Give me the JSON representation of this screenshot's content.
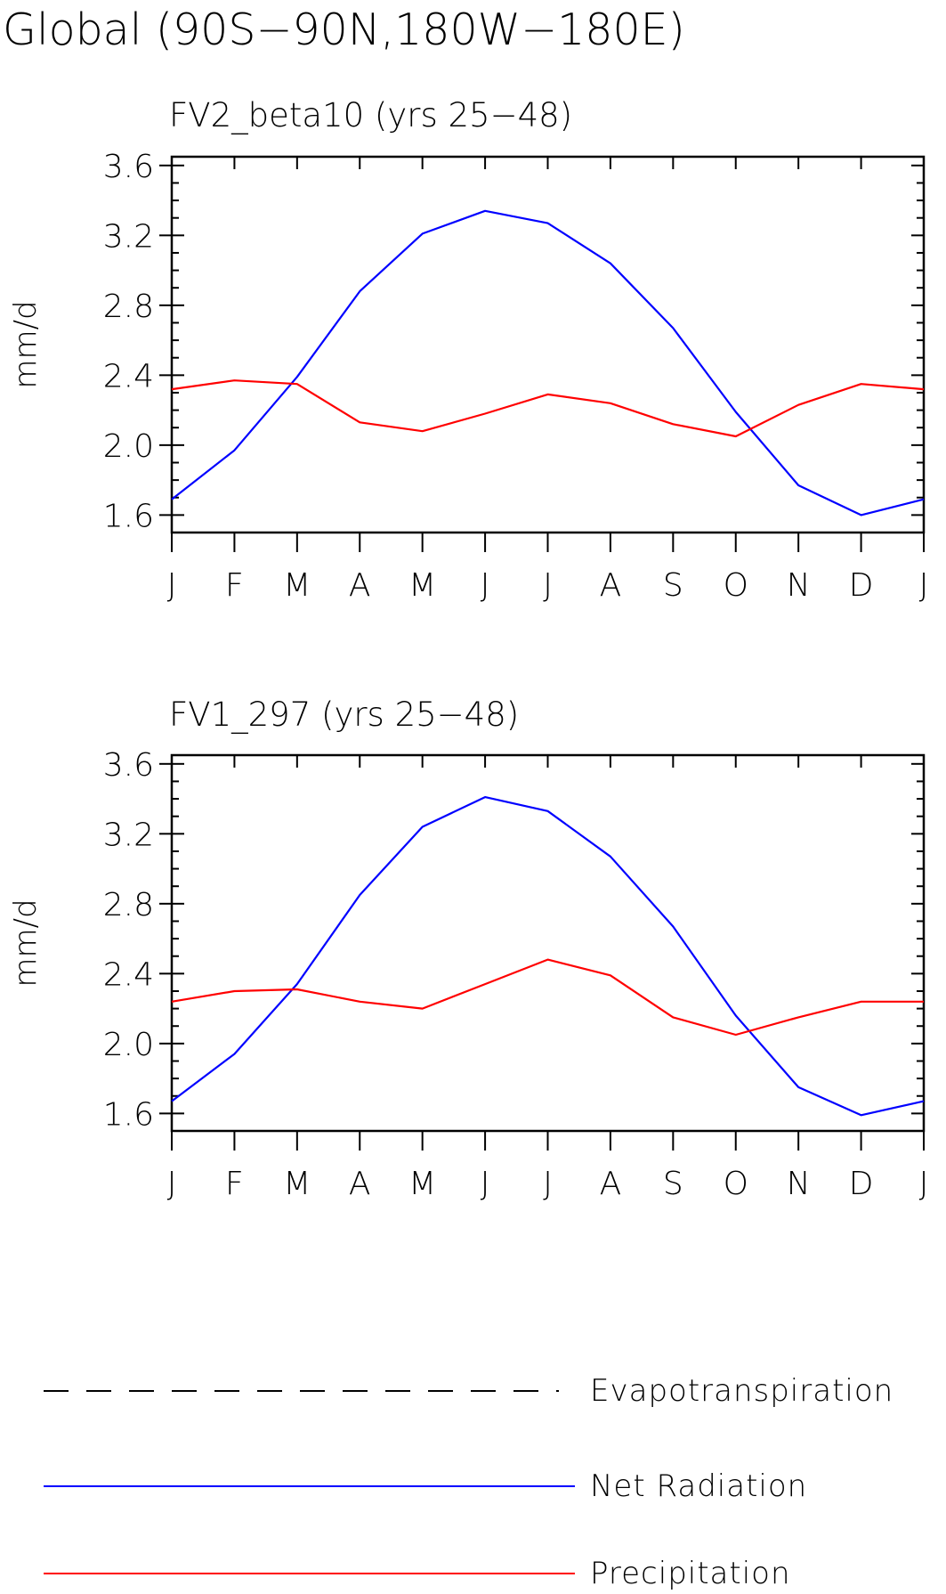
{
  "title": "Global (90S−90N,180W−180E)",
  "legend": [
    {
      "label": "Evapotranspiration",
      "color": "#000000",
      "dash": true
    },
    {
      "label": "Net Radiation",
      "color": "#0000ff",
      "dash": false
    },
    {
      "label": "Precipitation",
      "color": "#ff0000",
      "dash": false
    }
  ],
  "chart_data": [
    {
      "type": "line",
      "title": "FV2_beta10 (yrs 25−48)",
      "ylabel": "mm/d",
      "xlabel": "",
      "categories": [
        "J",
        "F",
        "M",
        "A",
        "M",
        "J",
        "J",
        "A",
        "S",
        "O",
        "N",
        "D",
        "J"
      ],
      "ylim": [
        1.5,
        3.65
      ],
      "yticks": [
        "1.6",
        "2.0",
        "2.4",
        "2.8",
        "3.2",
        "3.6"
      ],
      "grid": false,
      "series": [
        {
          "name": "Net Radiation",
          "color": "#0000ff",
          "values": [
            1.69,
            1.97,
            2.39,
            2.88,
            3.21,
            3.34,
            3.27,
            3.04,
            2.67,
            2.19,
            1.77,
            1.6,
            1.69
          ]
        },
        {
          "name": "Precipitation",
          "color": "#ff0000",
          "values": [
            2.32,
            2.37,
            2.35,
            2.13,
            2.08,
            2.18,
            2.29,
            2.24,
            2.12,
            2.05,
            2.23,
            2.35,
            2.32
          ]
        }
      ]
    },
    {
      "type": "line",
      "title": "FV1_297 (yrs 25−48)",
      "ylabel": "mm/d",
      "xlabel": "",
      "categories": [
        "J",
        "F",
        "M",
        "A",
        "M",
        "J",
        "J",
        "A",
        "S",
        "O",
        "N",
        "D",
        "J"
      ],
      "ylim": [
        1.5,
        3.65
      ],
      "yticks": [
        "1.6",
        "2.0",
        "2.4",
        "2.8",
        "3.2",
        "3.6"
      ],
      "grid": false,
      "series": [
        {
          "name": "Net Radiation",
          "color": "#0000ff",
          "values": [
            1.67,
            1.94,
            2.34,
            2.85,
            3.24,
            3.41,
            3.33,
            3.07,
            2.67,
            2.16,
            1.75,
            1.59,
            1.67
          ]
        },
        {
          "name": "Precipitation",
          "color": "#ff0000",
          "values": [
            2.24,
            2.3,
            2.31,
            2.24,
            2.2,
            2.34,
            2.48,
            2.39,
            2.15,
            2.05,
            2.15,
            2.24,
            2.24
          ]
        }
      ]
    }
  ]
}
